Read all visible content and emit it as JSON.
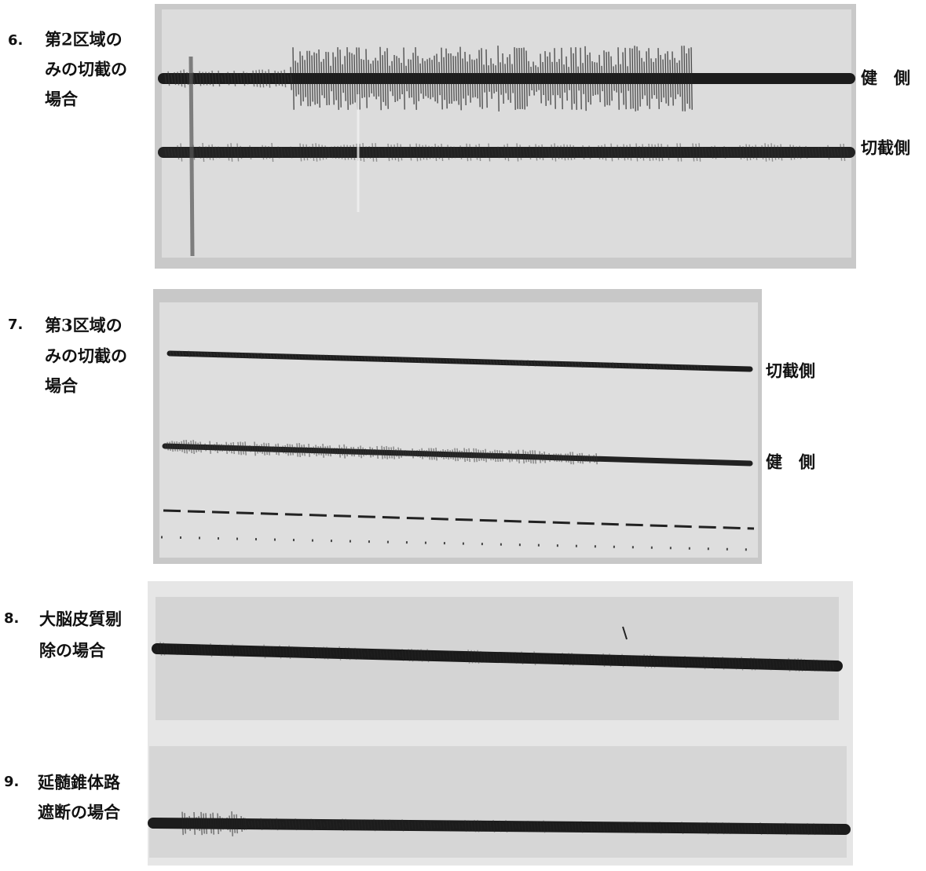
{
  "panels": [
    {
      "number": "6.",
      "caption_lines": [
        "第2区域の",
        "みの切截の",
        "場合"
      ],
      "trace_labels": [
        "健　側",
        "切截側"
      ]
    },
    {
      "number": "7.",
      "caption_lines": [
        "第3区域の",
        "みの切截の",
        "場合"
      ],
      "trace_labels": [
        "切截側",
        "健　側"
      ]
    },
    {
      "number": "8.",
      "caption_lines": [
        "大脳皮質剔",
        "除の場合"
      ],
      "trace_labels": []
    },
    {
      "number": "9.",
      "caption_lines": [
        "延髄錐体路",
        "遮断の場合"
      ],
      "trace_labels": []
    }
  ]
}
